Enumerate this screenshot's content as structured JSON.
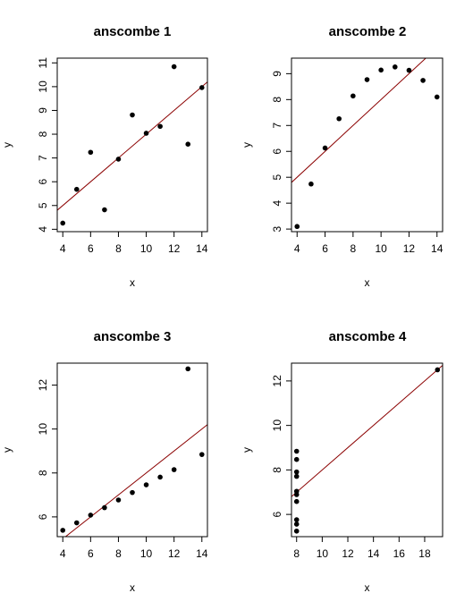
{
  "chart_data": [
    {
      "type": "scatter",
      "title": "anscombe 1",
      "xlabel": "x",
      "ylabel": "y",
      "xticks": [
        4,
        6,
        8,
        10,
        12,
        14
      ],
      "yticks": [
        4,
        5,
        6,
        7,
        8,
        9,
        10,
        11
      ],
      "xlim": [
        3.6,
        14.4
      ],
      "ylim": [
        3.9,
        11.2
      ],
      "points": {
        "x": [
          10,
          8,
          13,
          9,
          11,
          14,
          6,
          4,
          12,
          7,
          5
        ],
        "y": [
          8.04,
          6.95,
          7.58,
          8.81,
          8.33,
          9.96,
          7.24,
          4.26,
          10.84,
          4.82,
          5.68
        ]
      },
      "fit_line": {
        "intercept": 3.0,
        "slope": 0.5
      },
      "point_color": "#000000",
      "line_color": "#8b0000"
    },
    {
      "type": "scatter",
      "title": "anscombe 2",
      "xlabel": "x",
      "ylabel": "y",
      "xticks": [
        4,
        6,
        8,
        10,
        12,
        14
      ],
      "yticks": [
        3,
        4,
        5,
        6,
        7,
        8,
        9
      ],
      "xlim": [
        3.6,
        14.4
      ],
      "ylim": [
        2.9,
        9.6
      ],
      "points": {
        "x": [
          10,
          8,
          13,
          9,
          11,
          14,
          6,
          4,
          12,
          7,
          5
        ],
        "y": [
          9.14,
          8.14,
          8.74,
          8.77,
          9.26,
          8.1,
          6.13,
          3.1,
          9.13,
          7.26,
          4.74
        ]
      },
      "fit_line": {
        "intercept": 3.0,
        "slope": 0.5
      },
      "point_color": "#000000",
      "line_color": "#8b0000"
    },
    {
      "type": "scatter",
      "title": "anscombe 3",
      "xlabel": "x",
      "ylabel": "y",
      "xticks": [
        4,
        6,
        8,
        10,
        12,
        14
      ],
      "yticks": [
        6,
        8,
        10,
        12
      ],
      "xlim": [
        3.6,
        14.4
      ],
      "ylim": [
        5.1,
        13.0
      ],
      "points": {
        "x": [
          10,
          8,
          13,
          9,
          11,
          14,
          6,
          4,
          12,
          7,
          5
        ],
        "y": [
          7.46,
          6.77,
          12.74,
          7.11,
          7.81,
          8.84,
          6.08,
          5.39,
          8.15,
          6.42,
          5.73
        ]
      },
      "fit_line": {
        "intercept": 3.0,
        "slope": 0.5
      },
      "point_color": "#000000",
      "line_color": "#8b0000"
    },
    {
      "type": "scatter",
      "title": "anscombe 4",
      "xlabel": "x",
      "ylabel": "y",
      "xticks": [
        8,
        10,
        12,
        14,
        16,
        18
      ],
      "yticks": [
        6,
        8,
        10,
        12
      ],
      "xlim": [
        7.6,
        19.4
      ],
      "ylim": [
        5.0,
        12.8
      ],
      "points": {
        "x": [
          8,
          8,
          8,
          8,
          8,
          8,
          8,
          19,
          8,
          8,
          8
        ],
        "y": [
          6.58,
          5.76,
          7.71,
          8.84,
          8.47,
          7.04,
          5.25,
          12.5,
          5.56,
          7.91,
          6.89
        ]
      },
      "fit_line": {
        "intercept": 3.0,
        "slope": 0.5
      },
      "point_color": "#000000",
      "line_color": "#8b0000"
    }
  ]
}
